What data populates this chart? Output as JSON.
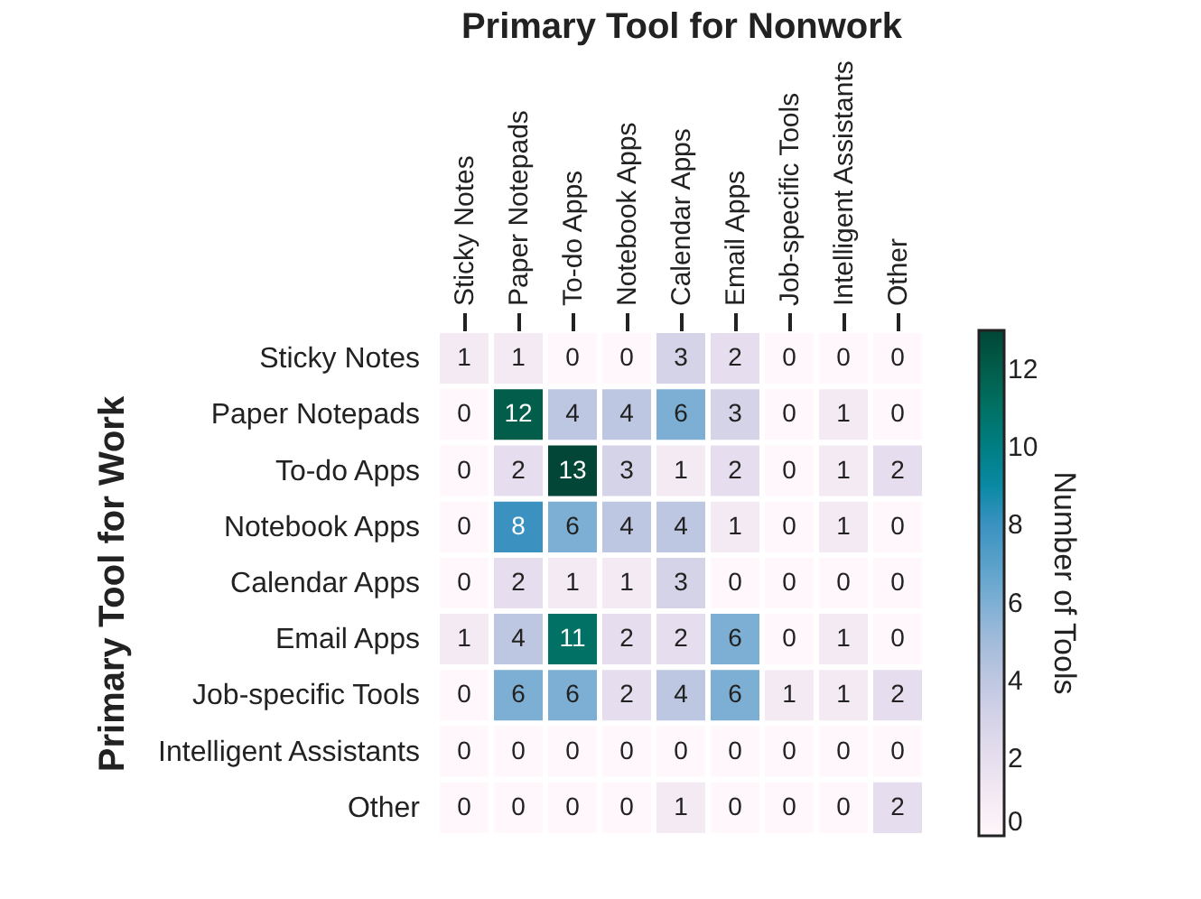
{
  "chart_data": {
    "type": "heatmap",
    "xlabel": "Primary Tool for Nonwork",
    "ylabel": "Primary Tool for Work",
    "clabel": "Number of Tools",
    "categories": [
      "Sticky Notes",
      "Paper Notepads",
      "To-do Apps",
      "Notebook Apps",
      "Calendar Apps",
      "Email Apps",
      "Job-specific Tools",
      "Intelligent Assistants",
      "Other"
    ],
    "y_categories": [
      "Sticky Notes",
      "Paper Notepads",
      "To-do Apps",
      "Notebook Apps",
      "Calendar Apps",
      "Email Apps",
      "Job-specific Tools",
      "Intelligent Assistants",
      "Other"
    ],
    "cells": [
      [
        1,
        1,
        0,
        0,
        3,
        2,
        0,
        0,
        0
      ],
      [
        0,
        12,
        4,
        4,
        6,
        3,
        0,
        1,
        0
      ],
      [
        0,
        2,
        13,
        3,
        1,
        2,
        0,
        1,
        2
      ],
      [
        0,
        8,
        6,
        4,
        4,
        1,
        0,
        1,
        0
      ],
      [
        0,
        2,
        1,
        1,
        3,
        0,
        0,
        0,
        0
      ],
      [
        1,
        4,
        11,
        2,
        2,
        6,
        0,
        1,
        0
      ],
      [
        0,
        6,
        6,
        2,
        4,
        6,
        1,
        1,
        2
      ],
      [
        0,
        0,
        0,
        0,
        0,
        0,
        0,
        0,
        0
      ],
      [
        0,
        0,
        0,
        0,
        1,
        0,
        0,
        0,
        2
      ]
    ],
    "data_labels": true,
    "clim": [
      0,
      13
    ],
    "cticks": [
      0,
      2,
      4,
      6,
      8,
      10,
      12
    ]
  }
}
